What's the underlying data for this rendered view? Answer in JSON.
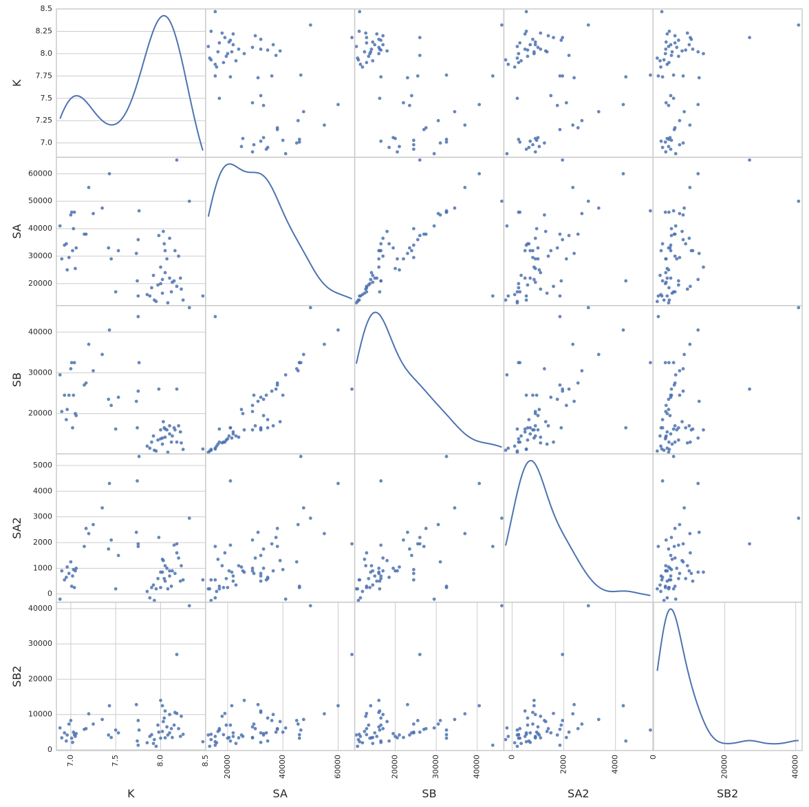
{
  "chart_data": {
    "type": "scatter_matrix",
    "diagonal": "kde",
    "color": "#4c72b0",
    "grid": true,
    "variables": [
      {
        "name": "K",
        "lim": [
          6.84,
          8.5
        ],
        "yticks": [
          {
            "value": 7,
            "label": "7.0"
          },
          7.25,
          7.5,
          7.75,
          {
            "value": 8,
            "label": "8.0"
          },
          8.25,
          8.5
        ],
        "xticks": [
          {
            "value": 7,
            "label": "7.0"
          },
          7.5,
          {
            "value": 8,
            "label": "8.0"
          },
          8.5
        ],
        "values": [
          6.88,
          6.9,
          6.93,
          6.95,
          6.96,
          6.98,
          7,
          7.01,
          7.02,
          7.03,
          7.04,
          7.05,
          7.06,
          7.15,
          7.17,
          7.2,
          7.25,
          7.35,
          7.43,
          7.42,
          7.45,
          7.5,
          7.53,
          7.73,
          7.75,
          7.76,
          7.74,
          7.75,
          7.85,
          7.88,
          7.9,
          7.92,
          7.93,
          7.95,
          7.97,
          7.98,
          8,
          8,
          8.02,
          8.02,
          8.03,
          8.04,
          8.05,
          8.05,
          8.07,
          8.08,
          8.1,
          8.1,
          8.12,
          8.13,
          8.15,
          8.16,
          8.18,
          8.18,
          8.2,
          8.22,
          8.23,
          8.25,
          8.32,
          8.47
        ]
      },
      {
        "name": "SA",
        "lim": [
          12000,
          66000
        ],
        "yticks": [
          20000,
          30000,
          40000,
          50000,
          60000
        ],
        "xticks": [
          20000,
          40000,
          60000
        ],
        "values": [
          41000,
          29000,
          34000,
          34500,
          25000,
          29500,
          45000,
          46000,
          32000,
          40000,
          46000,
          25500,
          33000,
          38000,
          38000,
          55000,
          45500,
          47500,
          60000,
          33000,
          29000,
          17000,
          32000,
          31000,
          36000,
          46500,
          21000,
          15500,
          16000,
          15500,
          18500,
          23000,
          14000,
          13500,
          19500,
          37500,
          20000,
          26000,
          16500,
          21500,
          39000,
          34500,
          24000,
          32000,
          29000,
          13000,
          22000,
          36500,
          17000,
          20500,
          21000,
          32000,
          65000,
          19000,
          30000,
          22000,
          18000,
          14000,
          50000,
          15500
        ]
      },
      {
        "name": "SB",
        "lim": [
          10100,
          46500
        ],
        "yticks": [
          20000,
          30000,
          40000
        ],
        "xticks": [
          20000,
          30000,
          40000
        ],
        "values": [
          29500,
          20500,
          24500,
          18500,
          21000,
          24500,
          31000,
          32500,
          16500,
          24500,
          32500,
          20000,
          19500,
          27000,
          27500,
          37000,
          30500,
          34500,
          40500,
          23500,
          22000,
          16200,
          24000,
          23000,
          25500,
          32500,
          16500,
          43800,
          12000,
          11500,
          13000,
          14500,
          11000,
          10800,
          13500,
          26000,
          13800,
          16000,
          12500,
          14000,
          18000,
          16500,
          14200,
          16200,
          16000,
          10500,
          15000,
          17000,
          13000,
          14500,
          16500,
          16000,
          26000,
          13000,
          17000,
          15500,
          12800,
          11200,
          46000,
          11300
        ]
      },
      {
        "name": "SA2",
        "lim": [
          -320,
          5450
        ],
        "yticks": [
          0,
          1000,
          2000,
          3000,
          4000,
          5000
        ],
        "xticks": [
          0,
          2000,
          4000
        ],
        "values": [
          -200,
          900,
          550,
          650,
          1050,
          800,
          1250,
          300,
          700,
          950,
          250,
          900,
          1000,
          1850,
          2550,
          2350,
          2700,
          3350,
          4300,
          1750,
          2100,
          200,
          1500,
          2400,
          1950,
          5350,
          4400,
          1850,
          100,
          -150,
          250,
          350,
          -250,
          200,
          600,
          2200,
          250,
          850,
          1350,
          850,
          1300,
          600,
          1100,
          500,
          1000,
          200,
          700,
          900,
          300,
          900,
          1900,
          800,
          1950,
          1600,
          1400,
          500,
          1100,
          550,
          2950,
          550
        ]
      },
      {
        "name": "SB2",
        "lim": [
          -200,
          41800
        ],
        "yticks": [
          0,
          10000,
          20000,
          30000,
          40000
        ],
        "xticks": [
          0,
          20000,
          40000
        ],
        "values": [
          6200,
          3400,
          4800,
          2500,
          4200,
          7300,
          8300,
          3300,
          2100,
          5000,
          4300,
          3800,
          4600,
          5800,
          6000,
          10200,
          7300,
          8600,
          12500,
          4200,
          3500,
          5600,
          4800,
          12800,
          8300,
          5600,
          2500,
          1300,
          2000,
          3800,
          4300,
          1800,
          2900,
          1000,
          7000,
          5000,
          3300,
          14000,
          5200,
          12500,
          8000,
          9000,
          3400,
          11000,
          6500,
          4200,
          4800,
          10000,
          6000,
          3500,
          7000,
          10600,
          27000,
          10300,
          6000,
          3800,
          9500,
          4400,
          40800,
          2300
        ]
      }
    ]
  }
}
